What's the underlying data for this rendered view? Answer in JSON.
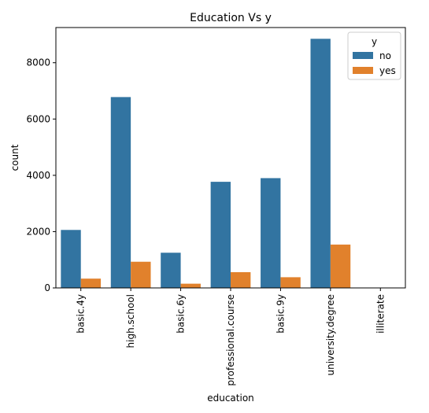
{
  "chart_data": {
    "type": "bar",
    "title": "Education Vs y",
    "xlabel": "education",
    "ylabel": "count",
    "categories": [
      "basic.4y",
      "high.school",
      "basic.6y",
      "professional.course",
      "basic.9y",
      "university.degree",
      "illiterate"
    ],
    "series": [
      {
        "name": "no",
        "color": "#3274a1",
        "values": [
          2060,
          6780,
          1250,
          3770,
          3900,
          8850,
          14
        ]
      },
      {
        "name": "yes",
        "color": "#e1812c",
        "values": [
          330,
          930,
          150,
          560,
          380,
          1540,
          4
        ]
      }
    ],
    "ylim": [
      0,
      9250
    ],
    "yticks": [
      0,
      2000,
      4000,
      6000,
      8000
    ],
    "grid": false,
    "legend": {
      "title": "y",
      "position": "top-right"
    }
  }
}
